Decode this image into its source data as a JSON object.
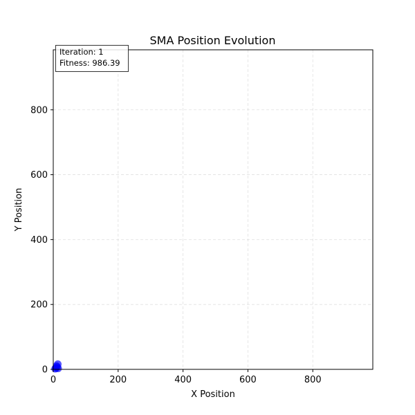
{
  "chart_data": {
    "type": "scatter",
    "title": "SMA Position Evolution",
    "xlabel": "X Position",
    "ylabel": "Y Position",
    "xlim": [
      0,
      985
    ],
    "ylim": [
      0,
      985
    ],
    "xticks": [
      0,
      200,
      400,
      600,
      800
    ],
    "yticks": [
      0,
      200,
      400,
      600,
      800
    ],
    "grid": true,
    "annotation": {
      "iteration_text": "Iteration: 1",
      "fitness_text": "Fitness: 986.39",
      "placement": "top-left"
    },
    "series": [
      {
        "color": "#0000ff",
        "points": [
          {
            "x": 14,
            "y": 16
          },
          {
            "x": 12,
            "y": 7
          },
          {
            "x": 8,
            "y": 4
          },
          {
            "x": 15,
            "y": 3
          },
          {
            "x": 10,
            "y": 10
          },
          {
            "x": 6,
            "y": 2
          }
        ]
      }
    ]
  }
}
